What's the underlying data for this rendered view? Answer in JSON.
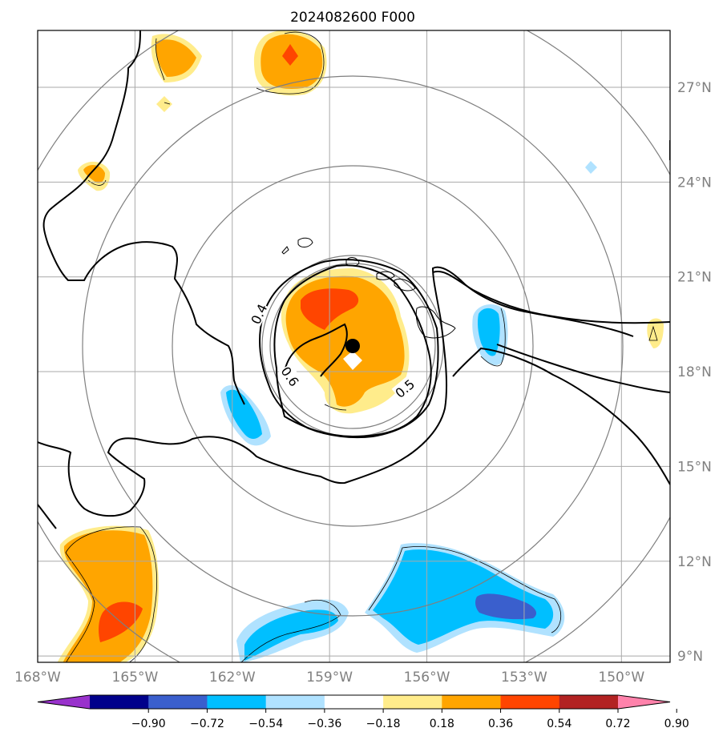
{
  "chart_data": {
    "type": "contour map",
    "title": "2024082600 F000",
    "projection": "lat-lon map with range rings around storm center",
    "lon_range": [
      -168,
      -148.5
    ],
    "lat_range": [
      8.8,
      28.8
    ],
    "x_ticks": [
      {
        "lon": -168,
        "label": "168°W"
      },
      {
        "lon": -165,
        "label": "165°W"
      },
      {
        "lon": -162,
        "label": "162°W"
      },
      {
        "lon": -159,
        "label": "159°W"
      },
      {
        "lon": -156,
        "label": "156°W"
      },
      {
        "lon": -153,
        "label": "153°W"
      },
      {
        "lon": -150,
        "label": "150°W"
      }
    ],
    "y_ticks": [
      {
        "lat": 9,
        "label": "9°N"
      },
      {
        "lat": 12,
        "label": "12°N"
      },
      {
        "lat": 15,
        "label": "15°N"
      },
      {
        "lat": 18,
        "label": "18°N"
      },
      {
        "lat": 21,
        "label": "21°N"
      },
      {
        "lat": 24,
        "label": "24°N"
      },
      {
        "lat": 27,
        "label": "27°N"
      }
    ],
    "storm_center": {
      "lon": -158.0,
      "lat": 18.9
    },
    "grid": true,
    "contour_line_labels": [
      "0.4",
      "0.6",
      "0.5"
    ],
    "colorbar": {
      "orientation": "horizontal",
      "extend": "both",
      "levels": [
        -0.9,
        -0.72,
        -0.54,
        -0.36,
        -0.18,
        0.18,
        0.36,
        0.54,
        0.72,
        0.9
      ],
      "tick_labels": [
        "−0.90",
        "−0.72",
        "−0.54",
        "−0.36",
        "−0.18",
        "0.18",
        "0.36",
        "0.54",
        "0.72",
        "0.90"
      ],
      "colors": [
        "#9932CC",
        "#00008B",
        "#3A5FCD",
        "#00BFFF",
        "#B0E2FF",
        "#FFFFFF",
        "#FFEC8B",
        "#FFA500",
        "#FF4500",
        "#B22222",
        "#FF82AB"
      ]
    }
  }
}
